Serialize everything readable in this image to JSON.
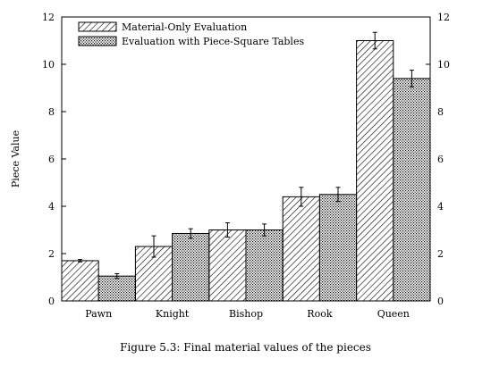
{
  "chart_data": {
    "type": "bar",
    "categories": [
      "Pawn",
      "Knight",
      "Bishop",
      "Rook",
      "Queen"
    ],
    "series": [
      {
        "name": "Material-Only Evaluation",
        "pattern": "diagonal-hatch",
        "values": [
          1.7,
          2.3,
          3.0,
          4.4,
          11.0
        ],
        "error": [
          0.05,
          0.45,
          0.3,
          0.4,
          0.35
        ]
      },
      {
        "name": "Evaluation with Piece-Square Tables",
        "pattern": "crosshatch-dots",
        "values": [
          1.05,
          2.85,
          3.0,
          4.5,
          9.4
        ],
        "error": [
          0.1,
          0.2,
          0.25,
          0.3,
          0.35
        ]
      }
    ],
    "ylabel": "Piece Value",
    "xlabel": "",
    "ylim": [
      0,
      12
    ],
    "yticks": [
      0,
      2,
      4,
      6,
      8,
      10,
      12
    ],
    "legend": "top-left",
    "grid": false,
    "mirror_right_axis": true
  },
  "caption": "Figure 5.3: Final material values of the pieces"
}
